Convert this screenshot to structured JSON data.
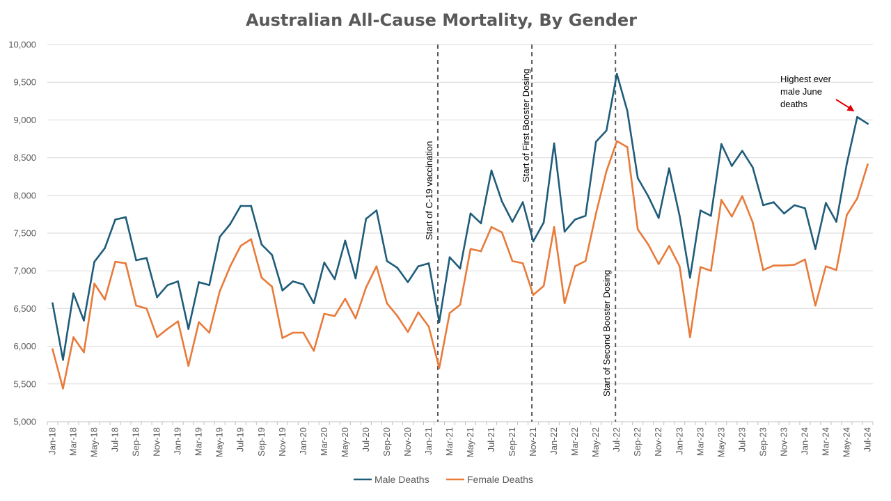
{
  "chart_data": {
    "type": "line",
    "title": "Australian All-Cause Mortality, By Gender",
    "xlabel": "",
    "ylabel": "",
    "ylim": [
      5000,
      10000
    ],
    "y_ticks": [
      5000,
      5500,
      6000,
      6500,
      7000,
      7500,
      8000,
      8500,
      9000,
      9500,
      10000
    ],
    "y_tick_labels": [
      "5,000",
      "5,500",
      "6,000",
      "6,500",
      "7,000",
      "7,500",
      "8,000",
      "8,500",
      "9,000",
      "9,500",
      "10,000"
    ],
    "grid": "horizontal",
    "legend_position": "bottom",
    "x": [
      "Jan-18",
      "Feb-18",
      "Mar-18",
      "Apr-18",
      "May-18",
      "Jun-18",
      "Jul-18",
      "Aug-18",
      "Sep-18",
      "Oct-18",
      "Nov-18",
      "Dec-18",
      "Jan-19",
      "Feb-19",
      "Mar-19",
      "Apr-19",
      "May-19",
      "Jun-19",
      "Jul-19",
      "Aug-19",
      "Sep-19",
      "Oct-19",
      "Nov-19",
      "Dec-19",
      "Jan-20",
      "Feb-20",
      "Mar-20",
      "Apr-20",
      "May-20",
      "Jun-20",
      "Jul-20",
      "Aug-20",
      "Sep-20",
      "Oct-20",
      "Nov-20",
      "Dec-20",
      "Jan-21",
      "Feb-21",
      "Mar-21",
      "Apr-21",
      "May-21",
      "Jun-21",
      "Jul-21",
      "Aug-21",
      "Sep-21",
      "Oct-21",
      "Nov-21",
      "Dec-21",
      "Jan-22",
      "Feb-22",
      "Mar-22",
      "Apr-22",
      "May-22",
      "Jun-22",
      "Jul-22",
      "Aug-22",
      "Sep-22",
      "Oct-22",
      "Nov-22",
      "Dec-22",
      "Jan-23",
      "Feb-23",
      "Mar-23",
      "Apr-23",
      "May-23",
      "Jun-23",
      "Jul-23",
      "Aug-23",
      "Sep-23",
      "Oct-23",
      "Nov-23",
      "Dec-23",
      "Jan-24",
      "Feb-24",
      "Mar-24",
      "Apr-24",
      "May-24",
      "Jun-24",
      "Jul-24"
    ],
    "x_tick_labels": [
      "Jan-18",
      "Mar-18",
      "May-18",
      "Jul-18",
      "Sep-18",
      "Nov-18",
      "Jan-19",
      "Mar-19",
      "May-19",
      "Jul-19",
      "Sep-19",
      "Nov-19",
      "Jan-20",
      "Mar-20",
      "May-20",
      "Jul-20",
      "Sep-20",
      "Nov-20",
      "Jan-21",
      "Mar-21",
      "May-21",
      "Jul-21",
      "Sep-21",
      "Nov-21",
      "Jan-22",
      "Mar-22",
      "May-22",
      "Jul-22",
      "Sep-22",
      "Nov-22",
      "Jan-23",
      "Mar-23",
      "May-23",
      "Jul-23",
      "Sep-23",
      "Nov-23",
      "Jan-24",
      "Mar-24",
      "May-24",
      "Jul-24"
    ],
    "series": [
      {
        "name": "Male Deaths",
        "color": "#1f5c7a",
        "values": [
          6570,
          5820,
          6700,
          6340,
          7120,
          7300,
          7680,
          7710,
          7140,
          7170,
          6650,
          6810,
          6860,
          6230,
          6850,
          6810,
          7450,
          7620,
          7860,
          7860,
          7350,
          7210,
          6740,
          6860,
          6820,
          6570,
          7110,
          6890,
          7400,
          6900,
          7690,
          7800,
          7130,
          7040,
          6850,
          7060,
          7100,
          6320,
          7180,
          7030,
          7760,
          7630,
          8330,
          7920,
          7650,
          7910,
          7390,
          7640,
          8690,
          7520,
          7680,
          7730,
          8710,
          8860,
          9610,
          9120,
          8230,
          7990,
          7700,
          8360,
          7730,
          6910,
          7800,
          7730,
          8680,
          8390,
          8590,
          8370,
          7870,
          7910,
          7760,
          7870,
          7830,
          7290,
          7900,
          7650,
          8420,
          9040,
          8950
        ]
      },
      {
        "name": "Female Deaths",
        "color": "#e87a3a",
        "values": [
          5960,
          5440,
          6120,
          5920,
          6830,
          6620,
          7120,
          7100,
          6540,
          6500,
          6120,
          6230,
          6330,
          5740,
          6320,
          6180,
          6730,
          7060,
          7330,
          7420,
          6910,
          6790,
          6110,
          6180,
          6180,
          5940,
          6430,
          6400,
          6630,
          6370,
          6780,
          7060,
          6570,
          6400,
          6190,
          6450,
          6260,
          5710,
          6440,
          6550,
          7290,
          7260,
          7580,
          7510,
          7130,
          7100,
          6680,
          6800,
          7580,
          6570,
          7060,
          7130,
          7760,
          8320,
          8720,
          8640,
          7550,
          7350,
          7090,
          7330,
          7060,
          6120,
          7050,
          7000,
          7940,
          7720,
          7990,
          7640,
          7010,
          7070,
          7070,
          7080,
          7150,
          6540,
          7060,
          7010,
          7740,
          7960,
          8410
        ]
      }
    ],
    "annotations": [
      {
        "text": "Start of C-19 vaccination",
        "x": "Feb-21",
        "line": "dashed",
        "color": "#595959"
      },
      {
        "text": "Start of First Booster Dosing",
        "x": "Nov-21",
        "line": "dashed",
        "color": "#595959"
      },
      {
        "text": "Start of Second Booster Dosing",
        "x": "Jul-22",
        "line": "dashed",
        "color": "#595959"
      },
      {
        "text_lines": [
          "Highest ever",
          "male June",
          "deaths"
        ],
        "points_to": "Jun-24",
        "arrow_color": "#e00000"
      }
    ]
  }
}
